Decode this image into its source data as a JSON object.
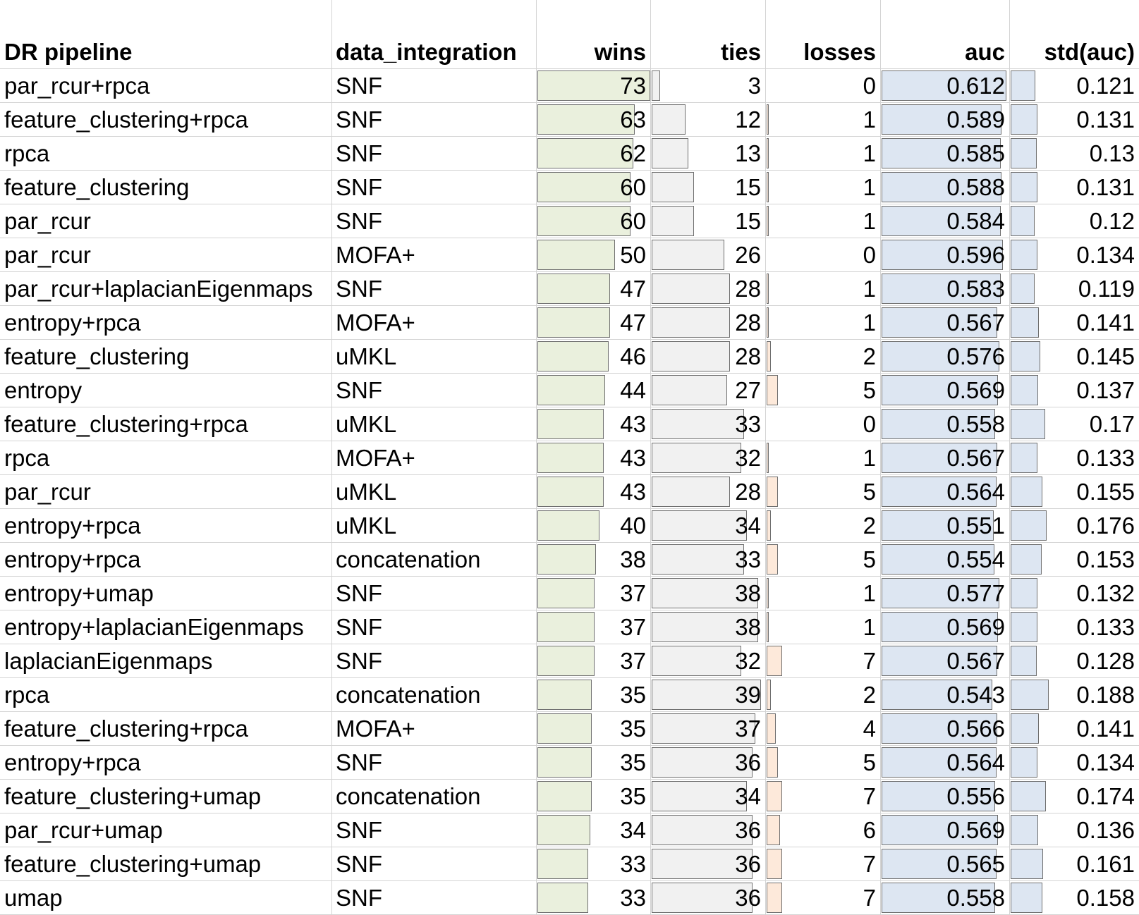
{
  "table": {
    "columns": [
      "DR pipeline",
      "data_integration",
      "wins",
      "ties",
      "losses",
      "auc",
      "std(auc)"
    ],
    "bar_colors": {
      "wins": "#eaf0dd",
      "ties": "#f1f1f1",
      "losses": "#fde9da",
      "auc": "#dde6f2",
      "std": "#dde6f2"
    },
    "rows": [
      {
        "pipeline": "par_rcur+rpca",
        "integration": "SNF",
        "wins": "73",
        "ties": "3",
        "losses": "0",
        "auc": "0.612",
        "std": "0.121"
      },
      {
        "pipeline": "feature_clustering+rpca",
        "integration": "SNF",
        "wins": "63",
        "ties": "12",
        "losses": "1",
        "auc": "0.589",
        "std": "0.131"
      },
      {
        "pipeline": "rpca",
        "integration": "SNF",
        "wins": "62",
        "ties": "13",
        "losses": "1",
        "auc": "0.585",
        "std": "0.13"
      },
      {
        "pipeline": "feature_clustering",
        "integration": "SNF",
        "wins": "60",
        "ties": "15",
        "losses": "1",
        "auc": "0.588",
        "std": "0.131"
      },
      {
        "pipeline": "par_rcur",
        "integration": "SNF",
        "wins": "60",
        "ties": "15",
        "losses": "1",
        "auc": "0.584",
        "std": "0.12"
      },
      {
        "pipeline": "par_rcur",
        "integration": "MOFA+",
        "wins": "50",
        "ties": "26",
        "losses": "0",
        "auc": "0.596",
        "std": "0.134"
      },
      {
        "pipeline": "par_rcur+laplacianEigenmaps",
        "integration": "SNF",
        "wins": "47",
        "ties": "28",
        "losses": "1",
        "auc": "0.583",
        "std": "0.119"
      },
      {
        "pipeline": "entropy+rpca",
        "integration": "MOFA+",
        "wins": "47",
        "ties": "28",
        "losses": "1",
        "auc": "0.567",
        "std": "0.141"
      },
      {
        "pipeline": "feature_clustering",
        "integration": "uMKL",
        "wins": "46",
        "ties": "28",
        "losses": "2",
        "auc": "0.576",
        "std": "0.145"
      },
      {
        "pipeline": "entropy",
        "integration": "SNF",
        "wins": "44",
        "ties": "27",
        "losses": "5",
        "auc": "0.569",
        "std": "0.137"
      },
      {
        "pipeline": "feature_clustering+rpca",
        "integration": "uMKL",
        "wins": "43",
        "ties": "33",
        "losses": "0",
        "auc": "0.558",
        "std": "0.17"
      },
      {
        "pipeline": "rpca",
        "integration": "MOFA+",
        "wins": "43",
        "ties": "32",
        "losses": "1",
        "auc": "0.567",
        "std": "0.133"
      },
      {
        "pipeline": "par_rcur",
        "integration": "uMKL",
        "wins": "43",
        "ties": "28",
        "losses": "5",
        "auc": "0.564",
        "std": "0.155"
      },
      {
        "pipeline": "entropy+rpca",
        "integration": "uMKL",
        "wins": "40",
        "ties": "34",
        "losses": "2",
        "auc": "0.551",
        "std": "0.176"
      },
      {
        "pipeline": "entropy+rpca",
        "integration": "concatenation",
        "wins": "38",
        "ties": "33",
        "losses": "5",
        "auc": "0.554",
        "std": "0.153"
      },
      {
        "pipeline": "entropy+umap",
        "integration": "SNF",
        "wins": "37",
        "ties": "38",
        "losses": "1",
        "auc": "0.577",
        "std": "0.132"
      },
      {
        "pipeline": "entropy+laplacianEigenmaps",
        "integration": "SNF",
        "wins": "37",
        "ties": "38",
        "losses": "1",
        "auc": "0.569",
        "std": "0.133"
      },
      {
        "pipeline": "laplacianEigenmaps",
        "integration": "SNF",
        "wins": "37",
        "ties": "32",
        "losses": "7",
        "auc": "0.567",
        "std": "0.128"
      },
      {
        "pipeline": "rpca",
        "integration": "concatenation",
        "wins": "35",
        "ties": "39",
        "losses": "2",
        "auc": "0.543",
        "std": "0.188"
      },
      {
        "pipeline": "feature_clustering+rpca",
        "integration": "MOFA+",
        "wins": "35",
        "ties": "37",
        "losses": "4",
        "auc": "0.566",
        "std": "0.141"
      },
      {
        "pipeline": "entropy+rpca",
        "integration": "SNF",
        "wins": "35",
        "ties": "36",
        "losses": "5",
        "auc": "0.564",
        "std": "0.134"
      },
      {
        "pipeline": "feature_clustering+umap",
        "integration": "concatenation",
        "wins": "35",
        "ties": "34",
        "losses": "7",
        "auc": "0.556",
        "std": "0.174"
      },
      {
        "pipeline": "par_rcur+umap",
        "integration": "SNF",
        "wins": "34",
        "ties": "36",
        "losses": "6",
        "auc": "0.569",
        "std": "0.136"
      },
      {
        "pipeline": "feature_clustering+umap",
        "integration": "SNF",
        "wins": "33",
        "ties": "36",
        "losses": "7",
        "auc": "0.565",
        "std": "0.161"
      },
      {
        "pipeline": "umap",
        "integration": "SNF",
        "wins": "33",
        "ties": "36",
        "losses": "7",
        "auc": "0.558",
        "std": "0.158"
      }
    ]
  }
}
